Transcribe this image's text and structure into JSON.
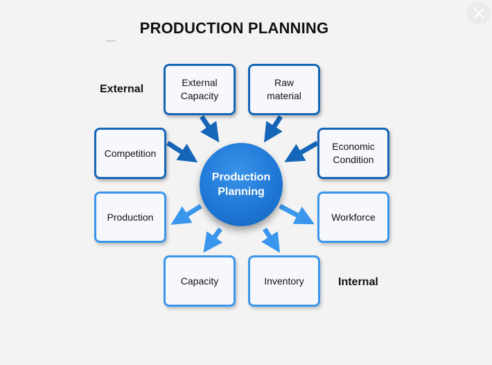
{
  "title": "PRODUCTION PLANNING",
  "labels": {
    "external": "External",
    "internal": "Internal"
  },
  "center": {
    "label": "Production\nPlanning"
  },
  "external_factors": {
    "external_capacity": "External\nCapacity",
    "raw_material": "Raw\nmaterial",
    "competition": "Competition",
    "economic_condition": "Economic\nCondition"
  },
  "internal_factors": {
    "production": "Production",
    "workforce": "Workforce",
    "capacity": "Capacity",
    "inventory": "Inventory"
  },
  "colors": {
    "external_border": "#1565b8",
    "internal_border": "#3a96ec",
    "external_arrow": "#1565b8",
    "internal_arrow": "#3a96ec",
    "center_fill": "#1f78d6",
    "background": "#f3f3f3"
  },
  "icons": {
    "close": "close-icon"
  }
}
